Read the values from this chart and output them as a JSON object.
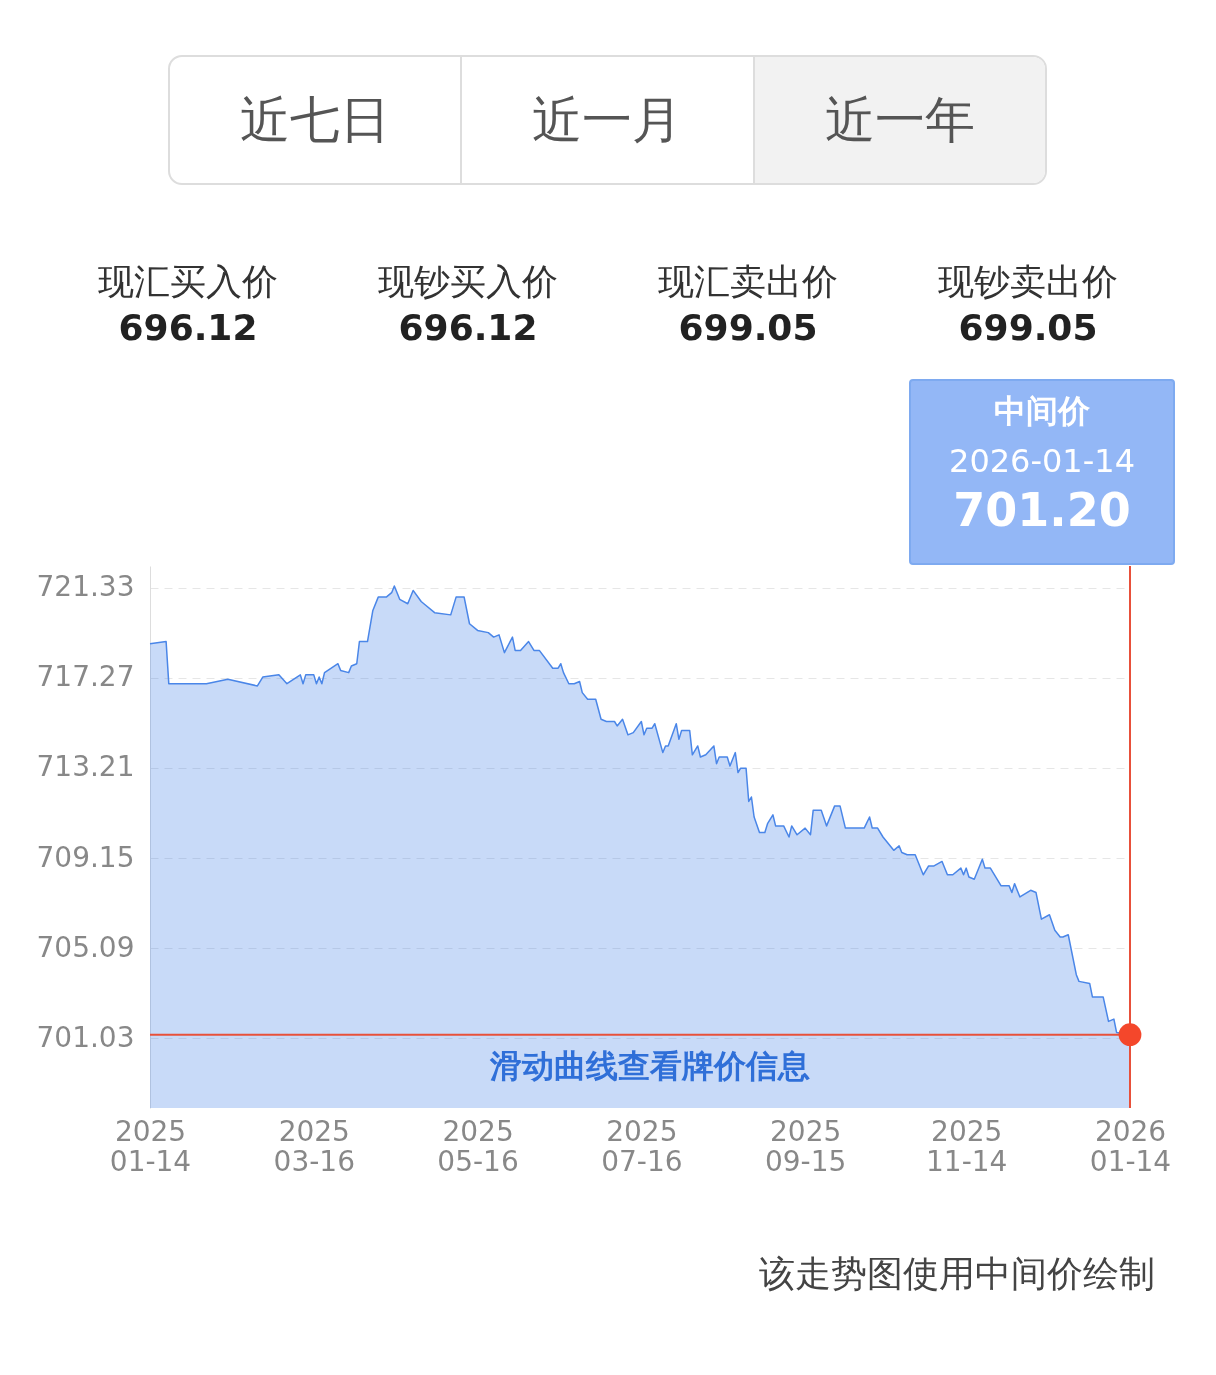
{
  "chart_data": {
    "type": "area",
    "xlim": [
      "2025-01-14",
      "2026-01-14"
    ],
    "ylim": [
      697.9,
      722.3
    ],
    "yticks": [
      701.03,
      705.09,
      709.15,
      713.21,
      717.27,
      721.33
    ],
    "xticks": [
      {
        "value": "2025-01-14",
        "label": "2025\n01-14"
      },
      {
        "value": "2025-03-16",
        "label": "2025\n03-16"
      },
      {
        "value": "2025-05-16",
        "label": "2025\n05-16"
      },
      {
        "value": "2025-07-16",
        "label": "2025\n07-16"
      },
      {
        "value": "2025-09-15",
        "label": "2025\n09-15"
      },
      {
        "value": "2025-11-14",
        "label": "2025\n11-14"
      },
      {
        "value": "2026-01-14",
        "label": "2026\n01-14"
      }
    ],
    "grid": "y",
    "x": [
      "2025-01-14",
      "2025-01-20",
      "2025-01-21",
      "2025-02-04",
      "2025-02-12",
      "2025-02-23",
      "2025-02-25",
      "2025-03-03",
      "2025-03-06",
      "2025-03-11",
      "2025-03-12",
      "2025-03-13",
      "2025-03-16",
      "2025-03-17",
      "2025-03-18",
      "2025-03-19",
      "2025-03-20",
      "2025-03-25",
      "2025-03-26",
      "2025-03-29",
      "2025-03-30",
      "2025-04-01",
      "2025-04-02",
      "2025-04-05",
      "2025-04-07",
      "2025-04-09",
      "2025-04-12",
      "2025-04-14",
      "2025-04-15",
      "2025-04-17",
      "2025-04-20",
      "2025-04-22",
      "2025-04-25",
      "2025-04-26",
      "2025-04-30",
      "2025-05-06",
      "2025-05-08",
      "2025-05-11",
      "2025-05-13",
      "2025-05-16",
      "2025-05-20",
      "2025-05-22",
      "2025-05-24",
      "2025-05-26",
      "2025-05-29",
      "2025-05-30",
      "2025-06-01",
      "2025-06-04",
      "2025-06-06",
      "2025-06-08",
      "2025-06-13",
      "2025-06-15",
      "2025-06-16",
      "2025-06-17",
      "2025-06-19",
      "2025-06-21",
      "2025-06-23",
      "2025-06-24",
      "2025-06-26",
      "2025-06-29",
      "2025-07-01",
      "2025-07-03",
      "2025-07-06",
      "2025-07-07",
      "2025-07-09",
      "2025-07-11",
      "2025-07-13",
      "2025-07-16",
      "2025-07-17",
      "2025-07-18",
      "2025-07-20",
      "2025-07-21",
      "2025-07-24",
      "2025-07-25",
      "2025-07-26",
      "2025-07-29",
      "2025-07-30",
      "2025-07-31",
      "2025-08-03",
      "2025-08-04",
      "2025-08-06",
      "2025-08-07",
      "2025-08-09",
      "2025-08-12",
      "2025-08-13",
      "2025-08-14",
      "2025-08-17",
      "2025-08-18",
      "2025-08-20",
      "2025-08-21",
      "2025-08-22",
      "2025-08-24",
      "2025-08-25",
      "2025-08-26",
      "2025-08-27",
      "2025-08-29",
      "2025-08-31",
      "2025-09-01",
      "2025-09-03",
      "2025-09-04",
      "2025-09-07",
      "2025-09-09",
      "2025-09-10",
      "2025-09-12",
      "2025-09-15",
      "2025-09-17",
      "2025-09-18",
      "2025-09-21",
      "2025-09-23",
      "2025-09-26",
      "2025-09-28",
      "2025-09-30",
      "2025-10-07",
      "2025-10-09",
      "2025-10-10",
      "2025-10-12",
      "2025-10-14",
      "2025-10-18",
      "2025-10-20",
      "2025-10-21",
      "2025-10-23",
      "2025-10-26",
      "2025-10-29",
      "2025-10-31",
      "2025-11-02",
      "2025-11-05",
      "2025-11-07",
      "2025-11-09",
      "2025-11-12",
      "2025-11-13",
      "2025-11-14",
      "2025-11-15",
      "2025-11-17",
      "2025-11-20",
      "2025-11-21",
      "2025-11-23",
      "2025-11-27",
      "2025-11-30",
      "2025-12-01",
      "2025-12-02",
      "2025-12-04",
      "2025-12-08",
      "2025-12-10",
      "2025-12-12",
      "2025-12-15",
      "2025-12-17",
      "2025-12-19",
      "2025-12-20",
      "2025-12-22",
      "2025-12-25",
      "2025-12-26",
      "2025-12-30",
      "2025-12-31",
      "2026-01-04",
      "2026-01-06",
      "2026-01-08",
      "2026-01-09",
      "2026-01-14"
    ],
    "series": [
      {
        "color": "#4a86e8",
        "values": [
          718.8,
          718.9,
          717.0,
          717.0,
          717.2,
          716.9,
          717.3,
          717.4,
          717.0,
          717.4,
          717.0,
          717.4,
          717.4,
          717.0,
          717.3,
          717.0,
          717.5,
          717.9,
          717.6,
          717.5,
          717.8,
          717.9,
          718.9,
          718.9,
          720.3,
          720.9,
          720.9,
          721.1,
          721.4,
          720.8,
          720.6,
          721.2,
          720.7,
          720.6,
          720.2,
          720.1,
          720.9,
          720.9,
          719.7,
          719.4,
          719.3,
          719.1,
          719.2,
          718.4,
          719.1,
          718.5,
          718.5,
          718.9,
          718.5,
          718.5,
          717.7,
          717.7,
          717.9,
          717.5,
          717.0,
          717.0,
          717.1,
          716.6,
          716.3,
          716.3,
          715.4,
          715.3,
          715.3,
          715.1,
          715.4,
          714.7,
          714.8,
          715.3,
          714.7,
          715.0,
          715.0,
          715.2,
          713.9,
          714.2,
          714.2,
          715.2,
          714.5,
          714.9,
          714.9,
          713.8,
          714.2,
          713.7,
          713.8,
          714.2,
          713.4,
          713.7,
          713.7,
          713.3,
          713.9,
          713.0,
          713.2,
          713.2,
          711.7,
          711.9,
          711.0,
          710.3,
          710.3,
          710.7,
          711.1,
          710.6,
          710.6,
          710.1,
          710.6,
          710.2,
          710.5,
          710.2,
          711.3,
          711.3,
          710.6,
          711.5,
          711.5,
          710.5,
          710.5,
          711.0,
          710.5,
          710.5,
          710.1,
          709.5,
          709.7,
          709.4,
          709.3,
          709.3,
          708.4,
          708.8,
          708.8,
          709.0,
          708.4,
          708.4,
          708.7,
          708.4,
          708.7,
          708.3,
          708.2,
          709.1,
          708.7,
          708.7,
          707.9,
          707.9,
          707.6,
          708.0,
          707.4,
          707.7,
          707.6,
          706.4,
          706.6,
          705.9,
          705.6,
          705.6,
          705.7,
          703.9,
          703.6,
          703.5,
          702.9,
          702.9,
          701.8,
          701.9,
          701.3,
          701.2
        ]
      },
      {
        "type": "scatter",
        "x": [
          "2026-01-14"
        ],
        "values": [
          701.2
        ],
        "color": "#f4472b"
      }
    ],
    "ref_lines": [
      {
        "axis": "y",
        "value": 701.2,
        "color": "#e8503a"
      },
      {
        "axis": "x",
        "value": "2026-01-14",
        "color": "#e8503a"
      }
    ],
    "annotations": [
      "近七日",
      "近一月",
      "近一年",
      "现汇买入价",
      "696.12",
      "现钞买入价",
      "696.12",
      "现汇卖出价",
      "699.05",
      "现钞卖出价",
      "699.05",
      "中间价",
      "2026-01-14",
      "701.20",
      "滑动曲线查看牌价信息",
      "该走势图使用中间价绘制"
    ]
  }
}
